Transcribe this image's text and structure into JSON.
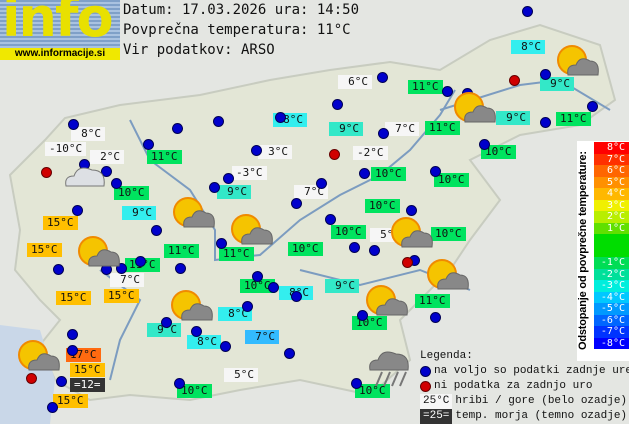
{
  "header": {
    "logo_text": "info",
    "logo_url": "www.informacije.si",
    "date_line": "Datum: 17.03.2026 ura: 14:50",
    "avg_temp_line": "Povprečna temperatura: 11°C",
    "source_line": "Vir podatkov: ARSO"
  },
  "colors": {
    "green": "#00e35f",
    "teal": "#33e8c8",
    "cyan": "#33eeee",
    "blue": "#33bbff",
    "orange": "#ffbf00",
    "red_orange": "#ff6a10",
    "white": "#f6f6f6",
    "sea": "#333333"
  },
  "stations": [
    {
      "t": "8°C",
      "c": "white"
    },
    {
      "t": "-10°C",
      "c": "white"
    },
    {
      "t": "2°C",
      "c": "white"
    },
    {
      "t": "11°C",
      "c": "green"
    },
    {
      "t": "10°C",
      "c": "green"
    },
    {
      "t": "9°C",
      "c": "cyan"
    },
    {
      "t": "15°C",
      "c": "orange"
    },
    {
      "t": "15°C",
      "c": "orange"
    },
    {
      "t": "3°C",
      "c": "white"
    },
    {
      "t": "-3°C",
      "c": "white"
    },
    {
      "t": "9°C",
      "c": "teal"
    },
    {
      "t": "11°C",
      "c": "green"
    },
    {
      "t": "11°C",
      "c": "green"
    },
    {
      "t": "11°C",
      "c": "green"
    },
    {
      "t": "7°C",
      "c": "white"
    },
    {
      "t": "15°C",
      "c": "orange"
    },
    {
      "t": "15°C",
      "c": "orange"
    },
    {
      "t": "9°C",
      "c": "teal"
    },
    {
      "t": "8°C",
      "c": "cyan"
    },
    {
      "t": "10°C",
      "c": "green"
    },
    {
      "t": "8°C",
      "c": "cyan"
    },
    {
      "t": "9°C",
      "c": "teal"
    },
    {
      "t": "8°C",
      "c": "cyan"
    },
    {
      "t": "7°C",
      "c": "blue"
    },
    {
      "t": "17°C",
      "c": "red_orange"
    },
    {
      "t": "15°C",
      "c": "orange"
    },
    {
      "t": "=12=",
      "c": "sea"
    },
    {
      "t": "15°C",
      "c": "orange"
    },
    {
      "t": "5°C",
      "c": "white"
    },
    {
      "t": "10°C",
      "c": "green"
    },
    {
      "t": "10°C",
      "c": "green"
    },
    {
      "t": "10°C",
      "c": "green"
    },
    {
      "t": "11°C",
      "c": "green"
    },
    {
      "t": "10°C",
      "c": "green"
    },
    {
      "t": "10°C",
      "c": "green"
    },
    {
      "t": "5°C",
      "c": "white"
    },
    {
      "t": "10°C",
      "c": "green"
    },
    {
      "t": "10°C",
      "c": "green"
    },
    {
      "t": "7°C",
      "c": "white"
    },
    {
      "t": "10°C",
      "c": "green"
    },
    {
      "t": "10°C",
      "c": "green"
    },
    {
      "t": "-2°C",
      "c": "white"
    },
    {
      "t": "7°C",
      "c": "white"
    },
    {
      "t": "9°C",
      "c": "teal"
    },
    {
      "t": "8°C",
      "c": "cyan"
    },
    {
      "t": "6°C",
      "c": "white"
    },
    {
      "t": "11°C",
      "c": "green"
    },
    {
      "t": "11°C",
      "c": "green"
    },
    {
      "t": "10°C",
      "c": "green"
    },
    {
      "t": "9°C",
      "c": "teal"
    },
    {
      "t": "11°C",
      "c": "green"
    },
    {
      "t": "9°C",
      "c": "teal"
    },
    {
      "t": "8°C",
      "c": "cyan"
    }
  ],
  "scale": {
    "title": "Odstopanje od povprečne temperature:",
    "rows": [
      {
        "t": "8°C",
        "c": "#ff0000"
      },
      {
        "t": "7°C",
        "c": "#ff3000"
      },
      {
        "t": "6°C",
        "c": "#ff6600"
      },
      {
        "t": "5°C",
        "c": "#ff9000"
      },
      {
        "t": "4°C",
        "c": "#ffb800"
      },
      {
        "t": "3°C",
        "c": "#f0f000"
      },
      {
        "t": "2°C",
        "c": "#b8ee00"
      },
      {
        "t": "1°C",
        "c": "#60e000"
      },
      {
        "t": "",
        "c": "#00dd00"
      },
      {
        "t": "",
        "c": "#00dd00"
      },
      {
        "t": "-1°C",
        "c": "#00dd55"
      },
      {
        "t": "-2°C",
        "c": "#00e09a"
      },
      {
        "t": "-3°C",
        "c": "#00eedd"
      },
      {
        "t": "-4°C",
        "c": "#00c8ff"
      },
      {
        "t": "-5°C",
        "c": "#0099ff"
      },
      {
        "t": "-6°C",
        "c": "#0066ff"
      },
      {
        "t": "-7°C",
        "c": "#0033ff"
      },
      {
        "t": "-8°C",
        "c": "#0000ff"
      }
    ]
  },
  "legend": {
    "title": "Legenda:",
    "blue_dot": "na voljo so podatki zadnje ure",
    "red_dot": "ni podatka za zadnjo uro",
    "mountain_sample": "25°C",
    "mountain_text": "hribi / gore (belo ozadje)",
    "sea_sample": "=25=",
    "sea_text": "temp. morja (temno ozadje)"
  }
}
